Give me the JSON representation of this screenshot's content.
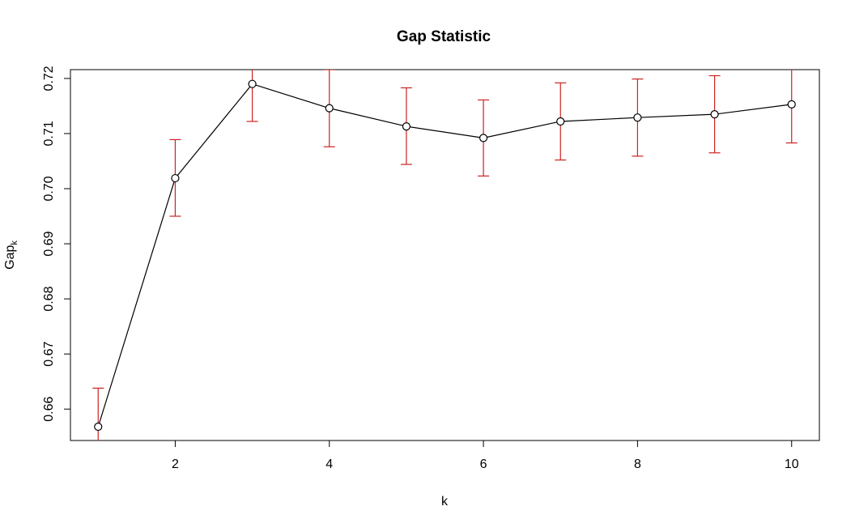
{
  "chart_data": {
    "type": "line",
    "title": "Gap Statistic",
    "xlabel": "k",
    "ylabel": "Gap",
    "ylabel_subscript": "k",
    "x": [
      1,
      2,
      3,
      4,
      5,
      6,
      7,
      8,
      9,
      10
    ],
    "y": [
      0.6568,
      0.7019,
      0.719,
      0.7146,
      0.7113,
      0.7092,
      0.7122,
      0.7129,
      0.7135,
      0.7153
    ],
    "error_low": [
      0.6498,
      0.695,
      0.7122,
      0.7076,
      0.7044,
      0.7023,
      0.7052,
      0.7059,
      0.7065,
      0.7083
    ],
    "error_high": [
      0.6638,
      0.7089,
      0.7258,
      0.7216,
      0.7183,
      0.7161,
      0.7192,
      0.7199,
      0.7205,
      0.7223
    ],
    "xlim": [
      0.64,
      10.36
    ],
    "ylim": [
      0.6543,
      0.7216
    ],
    "xticks": [
      2,
      4,
      6,
      8,
      10
    ],
    "xtick_labels": [
      "2",
      "4",
      "6",
      "8",
      "10"
    ],
    "yticks": [
      0.66,
      0.67,
      0.68,
      0.69,
      0.7,
      0.71,
      0.72
    ],
    "ytick_labels": [
      "0.66",
      "0.67",
      "0.68",
      "0.69",
      "0.70",
      "0.71",
      "0.72"
    ],
    "grid": false,
    "line_color": "#000000",
    "error_bar_color": "#cc2222",
    "marker": "open-circle"
  }
}
